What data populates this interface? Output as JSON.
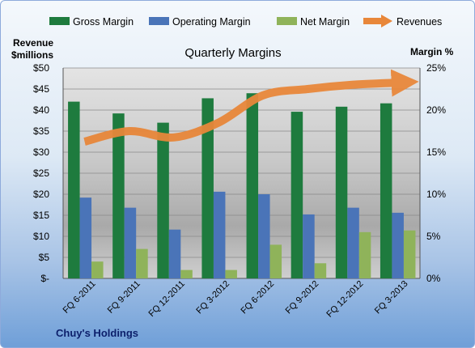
{
  "chart_data": {
    "type": "bar",
    "title": "Quarterly Margins",
    "left_axis_label_line1": "Revenue",
    "left_axis_label_line2": "$millions",
    "right_axis_label": "Margin %",
    "footer": "Chuy's Holdings",
    "categories": [
      "FQ 6-2011",
      "FQ 9-2011",
      "FQ 12-2011",
      "FQ 3-2012",
      "FQ 6-2012",
      "FQ 9-2012",
      "FQ 12-2012",
      "FQ 3-2013"
    ],
    "left_ticks": [
      "$-",
      "$5",
      "$10",
      "$15",
      "$20",
      "$25",
      "$30",
      "$35",
      "$40",
      "$45",
      "$50"
    ],
    "right_ticks": [
      "0%",
      "5%",
      "10%",
      "15%",
      "20%",
      "25%"
    ],
    "left_ylim": [
      0,
      50
    ],
    "right_ylim": [
      0,
      25
    ],
    "series": [
      {
        "name": "Gross Margin",
        "axis": "right",
        "color": "#1e7b3e",
        "values": [
          21.0,
          19.6,
          18.5,
          21.4,
          22.0,
          19.8,
          20.4,
          20.8
        ]
      },
      {
        "name": "Operating Margin",
        "axis": "right",
        "color": "#4a74b8",
        "values": [
          9.6,
          8.4,
          5.8,
          10.3,
          10.0,
          7.6,
          8.4,
          7.8
        ]
      },
      {
        "name": "Net Margin",
        "axis": "right",
        "color": "#8fb35a",
        "values": [
          2.0,
          3.5,
          1.0,
          1.0,
          4.0,
          1.8,
          5.5,
          5.7
        ]
      },
      {
        "name": "Revenues",
        "axis": "left",
        "color": "#e8873a",
        "values": [
          32.5,
          35.0,
          33.5,
          37.0,
          43.5,
          45.0,
          46.0,
          46.5
        ]
      }
    ],
    "grid": true,
    "legend_position": "top"
  }
}
